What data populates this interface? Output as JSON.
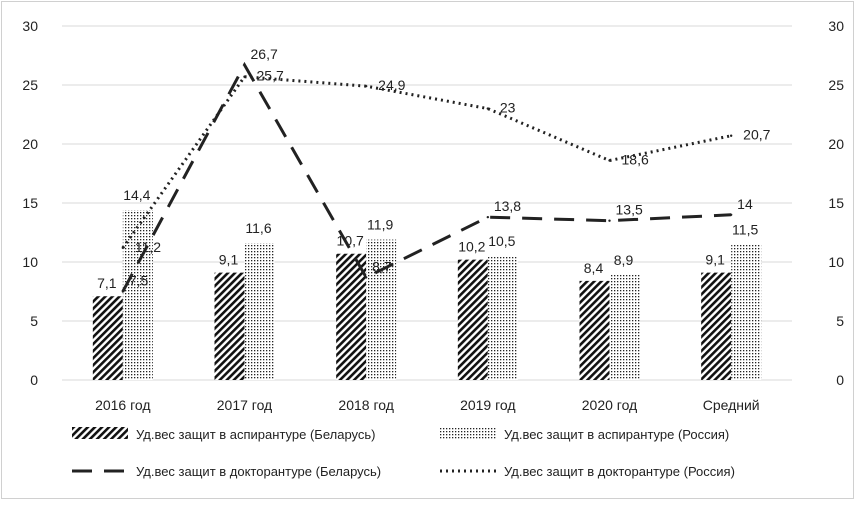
{
  "chart_data": {
    "type": "bar",
    "categories": [
      "2016 год",
      "2017 год",
      "2018 год",
      "2019 год",
      "2020 год",
      "Средний"
    ],
    "ylim": [
      0,
      30
    ],
    "yticks": [
      0,
      5,
      10,
      15,
      20,
      25,
      30
    ],
    "y2lim": [
      0,
      30
    ],
    "y2ticks": [
      0,
      5,
      10,
      15,
      20,
      25,
      30
    ],
    "grid": true,
    "legend_position": "bottom",
    "series": [
      {
        "name": "Уд.вес защит в аспирантуре (Беларусь)",
        "kind": "bar",
        "pattern": "diagonal-hatch",
        "values": [
          7.1,
          9.1,
          10.7,
          10.2,
          8.4,
          9.1
        ],
        "labels": [
          "7,1",
          "9,1",
          "10,7",
          "10,2",
          "8,4",
          "9,1"
        ]
      },
      {
        "name": "Уд.вес защит в аспирантуре (Россия)",
        "kind": "bar",
        "pattern": "dots",
        "values": [
          14.4,
          11.6,
          11.9,
          10.5,
          8.9,
          11.5
        ],
        "labels": [
          "14,4",
          "11,6",
          "11,9",
          "10,5",
          "8,9",
          "11,5"
        ]
      },
      {
        "name": "Уд.вес защит в докторантуре (Беларусь)",
        "kind": "line",
        "style": "dashed",
        "values": [
          7.5,
          26.7,
          8.7,
          13.8,
          13.5,
          14
        ],
        "labels": [
          "7,5",
          "26,7",
          "8,7",
          "13,8",
          "13,5",
          "14"
        ]
      },
      {
        "name": "Уд.вес защит в докторантуре (Россия)",
        "kind": "line",
        "style": "dotted",
        "values": [
          11.2,
          25.7,
          24.9,
          23,
          18.6,
          20.7
        ],
        "labels": [
          "11,2",
          "25,7",
          "24,9",
          "23",
          "18,6",
          "20,7"
        ]
      }
    ],
    "colors": {
      "ink": "#222222",
      "grid": "#d9d9d9",
      "axis_text": "#555555"
    }
  }
}
